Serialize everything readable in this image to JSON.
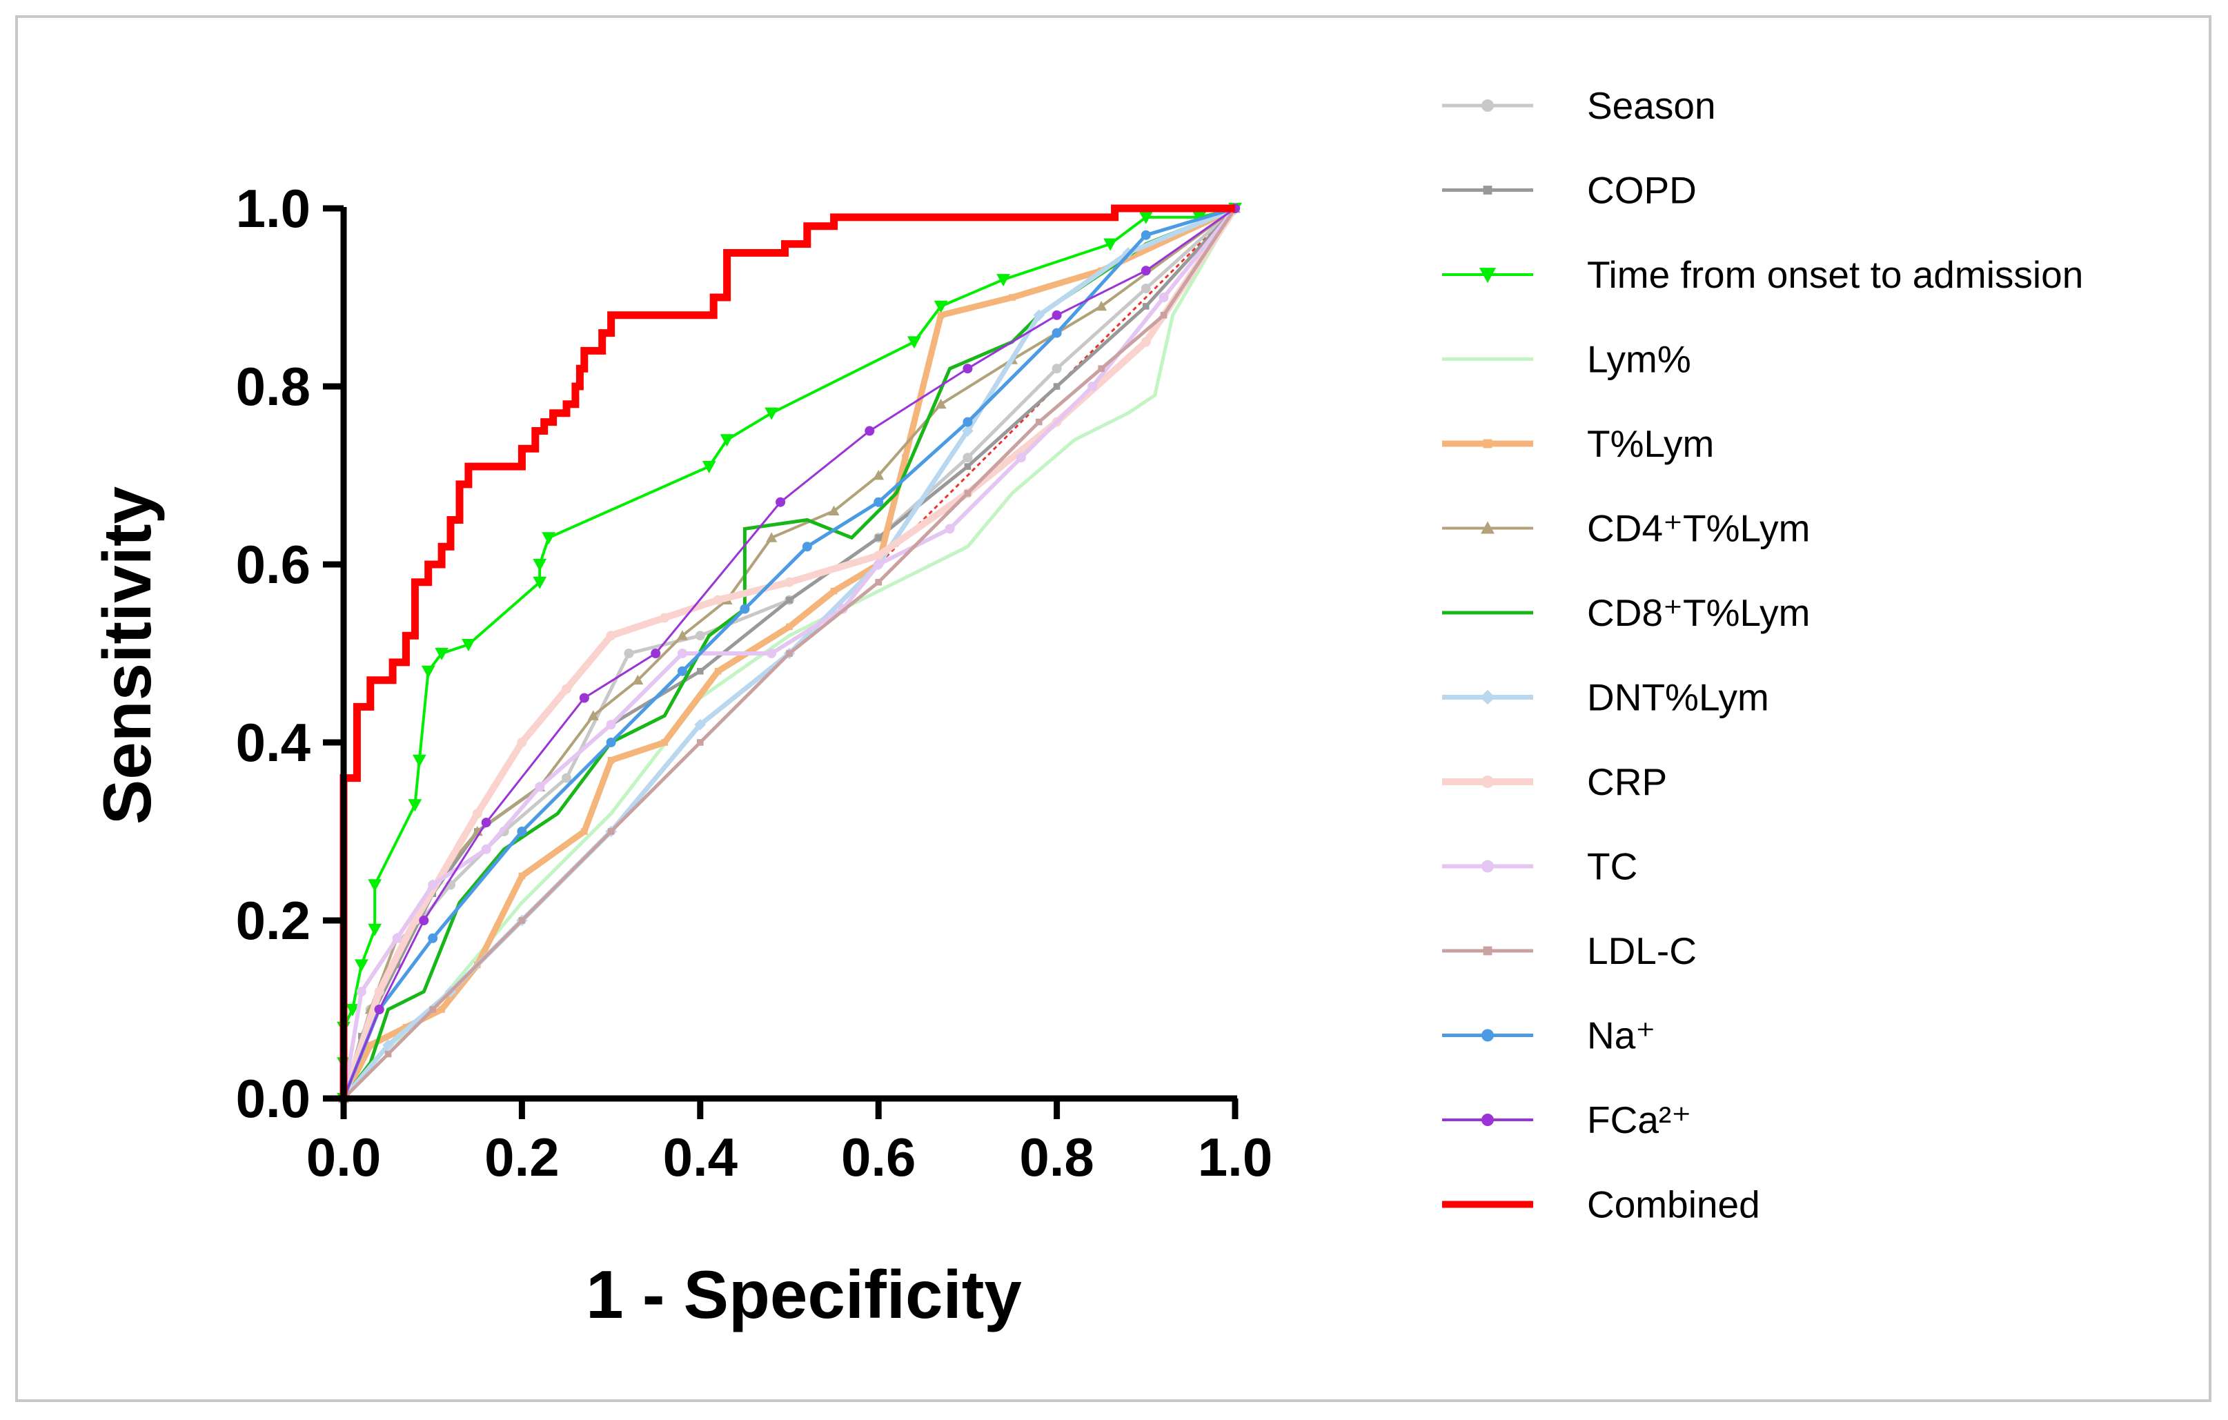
{
  "chart_data": {
    "type": "line",
    "xlabel": "1 - Specificity",
    "ylabel": "Sensitivity",
    "xlim": [
      0,
      1
    ],
    "ylim": [
      0,
      1
    ],
    "xticks": [
      "0.0",
      "0.2",
      "0.4",
      "0.6",
      "0.8",
      "1.0"
    ],
    "yticks": [
      "0.0",
      "0.2",
      "0.4",
      "0.6",
      "0.8",
      "1.0"
    ],
    "legend_position": "right",
    "reference_line": {
      "color": "#e8352e",
      "style": "dotted",
      "points": [
        [
          0,
          0
        ],
        [
          1,
          1
        ]
      ]
    },
    "series": [
      {
        "name": "Season",
        "color": "#c8c8c8",
        "width": 5,
        "marker": "circle",
        "points": [
          [
            0,
            0
          ],
          [
            0.03,
            0.1
          ],
          [
            0.07,
            0.18
          ],
          [
            0.12,
            0.24
          ],
          [
            0.18,
            0.3
          ],
          [
            0.25,
            0.36
          ],
          [
            0.32,
            0.5
          ],
          [
            0.4,
            0.52
          ],
          [
            0.5,
            0.56
          ],
          [
            0.6,
            0.63
          ],
          [
            0.7,
            0.72
          ],
          [
            0.8,
            0.82
          ],
          [
            0.9,
            0.91
          ],
          [
            1,
            1
          ]
        ]
      },
      {
        "name": "COPD",
        "color": "#999999",
        "width": 5,
        "marker": "square",
        "points": [
          [
            0,
            0
          ],
          [
            0.02,
            0.07
          ],
          [
            0.06,
            0.15
          ],
          [
            0.1,
            0.23
          ],
          [
            0.15,
            0.3
          ],
          [
            0.22,
            0.35
          ],
          [
            0.3,
            0.42
          ],
          [
            0.4,
            0.48
          ],
          [
            0.5,
            0.56
          ],
          [
            0.6,
            0.63
          ],
          [
            0.7,
            0.71
          ],
          [
            0.8,
            0.8
          ],
          [
            0.9,
            0.89
          ],
          [
            1,
            1
          ]
        ]
      },
      {
        "name": "Time from onset to admission",
        "color": "#00ee00",
        "width": 4,
        "marker": "triangle-down",
        "points": [
          [
            0,
            0
          ],
          [
            0,
            0.04
          ],
          [
            0,
            0.08
          ],
          [
            0.01,
            0.1
          ],
          [
            0.02,
            0.15
          ],
          [
            0.035,
            0.19
          ],
          [
            0.035,
            0.24
          ],
          [
            0.08,
            0.33
          ],
          [
            0.085,
            0.38
          ],
          [
            0.095,
            0.48
          ],
          [
            0.11,
            0.5
          ],
          [
            0.14,
            0.51
          ],
          [
            0.22,
            0.58
          ],
          [
            0.22,
            0.6
          ],
          [
            0.23,
            0.63
          ],
          [
            0.41,
            0.71
          ],
          [
            0.43,
            0.74
          ],
          [
            0.48,
            0.77
          ],
          [
            0.64,
            0.85
          ],
          [
            0.67,
            0.89
          ],
          [
            0.74,
            0.92
          ],
          [
            0.86,
            0.96
          ],
          [
            0.9,
            0.99
          ],
          [
            0.96,
            0.99
          ],
          [
            1,
            1
          ]
        ]
      },
      {
        "name": "Lym%",
        "color": "#c2f5c2",
        "width": 5,
        "marker": "none",
        "points": [
          [
            0,
            0
          ],
          [
            0.03,
            0.04
          ],
          [
            0.1,
            0.1
          ],
          [
            0.2,
            0.22
          ],
          [
            0.3,
            0.32
          ],
          [
            0.4,
            0.45
          ],
          [
            0.5,
            0.52
          ],
          [
            0.6,
            0.57
          ],
          [
            0.7,
            0.62
          ],
          [
            0.75,
            0.68
          ],
          [
            0.82,
            0.74
          ],
          [
            0.88,
            0.77
          ],
          [
            0.91,
            0.79
          ],
          [
            0.93,
            0.88
          ],
          [
            1,
            1
          ]
        ]
      },
      {
        "name": "T%Lym",
        "color": "#f5b47a",
        "width": 9,
        "marker": "square",
        "points": [
          [
            0,
            0
          ],
          [
            0.03,
            0.06
          ],
          [
            0.07,
            0.08
          ],
          [
            0.11,
            0.1
          ],
          [
            0.15,
            0.15
          ],
          [
            0.2,
            0.25
          ],
          [
            0.27,
            0.3
          ],
          [
            0.3,
            0.38
          ],
          [
            0.36,
            0.4
          ],
          [
            0.42,
            0.48
          ],
          [
            0.5,
            0.53
          ],
          [
            0.55,
            0.57
          ],
          [
            0.6,
            0.6
          ],
          [
            0.63,
            0.72
          ],
          [
            0.67,
            0.88
          ],
          [
            0.75,
            0.9
          ],
          [
            0.85,
            0.93
          ],
          [
            1,
            1
          ]
        ]
      },
      {
        "name": "CD4⁺T%Lym",
        "color": "#b1a27a",
        "width": 4,
        "marker": "triangle",
        "points": [
          [
            0,
            0
          ],
          [
            0.03,
            0.1
          ],
          [
            0.06,
            0.18
          ],
          [
            0.1,
            0.24
          ],
          [
            0.15,
            0.3
          ],
          [
            0.22,
            0.35
          ],
          [
            0.28,
            0.43
          ],
          [
            0.33,
            0.47
          ],
          [
            0.38,
            0.52
          ],
          [
            0.43,
            0.56
          ],
          [
            0.48,
            0.63
          ],
          [
            0.55,
            0.66
          ],
          [
            0.6,
            0.7
          ],
          [
            0.67,
            0.78
          ],
          [
            0.75,
            0.83
          ],
          [
            0.85,
            0.89
          ],
          [
            1,
            1
          ]
        ]
      },
      {
        "name": "CD8⁺T%Lym",
        "color": "#19b619",
        "width": 5,
        "marker": "none",
        "points": [
          [
            0,
            0
          ],
          [
            0.03,
            0.04
          ],
          [
            0.05,
            0.1
          ],
          [
            0.09,
            0.12
          ],
          [
            0.13,
            0.22
          ],
          [
            0.18,
            0.28
          ],
          [
            0.24,
            0.32
          ],
          [
            0.3,
            0.4
          ],
          [
            0.36,
            0.43
          ],
          [
            0.41,
            0.52
          ],
          [
            0.45,
            0.55
          ],
          [
            0.45,
            0.64
          ],
          [
            0.52,
            0.65
          ],
          [
            0.57,
            0.63
          ],
          [
            0.62,
            0.68
          ],
          [
            0.68,
            0.82
          ],
          [
            0.75,
            0.85
          ],
          [
            0.78,
            0.88
          ],
          [
            0.9,
            0.96
          ],
          [
            1,
            1
          ]
        ]
      },
      {
        "name": "DNT%Lym",
        "color": "#b9d8ef",
        "width": 7,
        "marker": "diamond",
        "points": [
          [
            0,
            0
          ],
          [
            0.05,
            0.06
          ],
          [
            0.12,
            0.12
          ],
          [
            0.2,
            0.2
          ],
          [
            0.3,
            0.3
          ],
          [
            0.4,
            0.42
          ],
          [
            0.5,
            0.5
          ],
          [
            0.6,
            0.6
          ],
          [
            0.7,
            0.75
          ],
          [
            0.78,
            0.88
          ],
          [
            0.88,
            0.95
          ],
          [
            1,
            1
          ]
        ]
      },
      {
        "name": "CRP",
        "color": "#fad3cf",
        "width": 10,
        "marker": "circle",
        "points": [
          [
            0,
            0
          ],
          [
            0.04,
            0.12
          ],
          [
            0.08,
            0.2
          ],
          [
            0.15,
            0.32
          ],
          [
            0.2,
            0.4
          ],
          [
            0.25,
            0.46
          ],
          [
            0.3,
            0.52
          ],
          [
            0.36,
            0.54
          ],
          [
            0.42,
            0.56
          ],
          [
            0.5,
            0.58
          ],
          [
            0.6,
            0.61
          ],
          [
            0.7,
            0.68
          ],
          [
            0.8,
            0.76
          ],
          [
            0.9,
            0.85
          ],
          [
            1,
            1
          ]
        ]
      },
      {
        "name": "TC",
        "color": "#e5c6f3",
        "width": 6,
        "marker": "circle",
        "points": [
          [
            0,
            0
          ],
          [
            0.02,
            0.12
          ],
          [
            0.06,
            0.18
          ],
          [
            0.1,
            0.24
          ],
          [
            0.16,
            0.28
          ],
          [
            0.22,
            0.35
          ],
          [
            0.3,
            0.42
          ],
          [
            0.38,
            0.5
          ],
          [
            0.48,
            0.5
          ],
          [
            0.56,
            0.55
          ],
          [
            0.6,
            0.6
          ],
          [
            0.68,
            0.64
          ],
          [
            0.76,
            0.72
          ],
          [
            0.84,
            0.8
          ],
          [
            0.92,
            0.9
          ],
          [
            1,
            1
          ]
        ]
      },
      {
        "name": "LDL-C",
        "color": "#c9a1a1",
        "width": 5,
        "marker": "square",
        "points": [
          [
            0,
            0
          ],
          [
            0.05,
            0.05
          ],
          [
            0.1,
            0.1
          ],
          [
            0.2,
            0.2
          ],
          [
            0.3,
            0.3
          ],
          [
            0.4,
            0.4
          ],
          [
            0.5,
            0.5
          ],
          [
            0.6,
            0.58
          ],
          [
            0.7,
            0.68
          ],
          [
            0.78,
            0.76
          ],
          [
            0.85,
            0.82
          ],
          [
            0.92,
            0.88
          ],
          [
            1,
            1
          ]
        ]
      },
      {
        "name": "Na⁺",
        "color": "#4a9be4",
        "width": 5,
        "marker": "circle",
        "points": [
          [
            0,
            0
          ],
          [
            0.04,
            0.1
          ],
          [
            0.1,
            0.18
          ],
          [
            0.2,
            0.3
          ],
          [
            0.3,
            0.4
          ],
          [
            0.38,
            0.48
          ],
          [
            0.45,
            0.55
          ],
          [
            0.52,
            0.62
          ],
          [
            0.6,
            0.67
          ],
          [
            0.7,
            0.76
          ],
          [
            0.8,
            0.86
          ],
          [
            0.9,
            0.97
          ],
          [
            1,
            1
          ]
        ]
      },
      {
        "name": "FCa²⁺",
        "color": "#9a34d6",
        "width": 3,
        "marker": "circle",
        "points": [
          [
            0,
            0
          ],
          [
            0.04,
            0.1
          ],
          [
            0.09,
            0.2
          ],
          [
            0.16,
            0.31
          ],
          [
            0.27,
            0.45
          ],
          [
            0.35,
            0.5
          ],
          [
            0.49,
            0.67
          ],
          [
            0.59,
            0.75
          ],
          [
            0.7,
            0.82
          ],
          [
            0.8,
            0.88
          ],
          [
            0.9,
            0.93
          ],
          [
            1,
            1
          ]
        ]
      },
      {
        "name": "Combined",
        "color": "#ff0000",
        "width": 11,
        "marker": "none",
        "points": [
          [
            0,
            0
          ],
          [
            0,
            0.1
          ],
          [
            0,
            0.36
          ],
          [
            0.015,
            0.36
          ],
          [
            0.015,
            0.44
          ],
          [
            0.03,
            0.44
          ],
          [
            0.03,
            0.47
          ],
          [
            0.055,
            0.47
          ],
          [
            0.055,
            0.49
          ],
          [
            0.07,
            0.49
          ],
          [
            0.07,
            0.52
          ],
          [
            0.08,
            0.52
          ],
          [
            0.08,
            0.58
          ],
          [
            0.095,
            0.58
          ],
          [
            0.095,
            0.6
          ],
          [
            0.11,
            0.6
          ],
          [
            0.11,
            0.62
          ],
          [
            0.12,
            0.62
          ],
          [
            0.12,
            0.65
          ],
          [
            0.13,
            0.65
          ],
          [
            0.13,
            0.69
          ],
          [
            0.14,
            0.69
          ],
          [
            0.14,
            0.71
          ],
          [
            0.2,
            0.71
          ],
          [
            0.2,
            0.73
          ],
          [
            0.215,
            0.73
          ],
          [
            0.215,
            0.75
          ],
          [
            0.225,
            0.75
          ],
          [
            0.225,
            0.76
          ],
          [
            0.235,
            0.76
          ],
          [
            0.235,
            0.77
          ],
          [
            0.25,
            0.77
          ],
          [
            0.25,
            0.78
          ],
          [
            0.26,
            0.78
          ],
          [
            0.26,
            0.8
          ],
          [
            0.265,
            0.8
          ],
          [
            0.265,
            0.82
          ],
          [
            0.27,
            0.82
          ],
          [
            0.27,
            0.84
          ],
          [
            0.29,
            0.84
          ],
          [
            0.29,
            0.86
          ],
          [
            0.3,
            0.86
          ],
          [
            0.3,
            0.88
          ],
          [
            0.415,
            0.88
          ],
          [
            0.415,
            0.9
          ],
          [
            0.43,
            0.9
          ],
          [
            0.43,
            0.95
          ],
          [
            0.495,
            0.95
          ],
          [
            0.495,
            0.96
          ],
          [
            0.52,
            0.96
          ],
          [
            0.52,
            0.98
          ],
          [
            0.55,
            0.98
          ],
          [
            0.55,
            0.99
          ],
          [
            0.865,
            0.99
          ],
          [
            0.865,
            1.0
          ],
          [
            1,
            1
          ]
        ]
      }
    ]
  }
}
